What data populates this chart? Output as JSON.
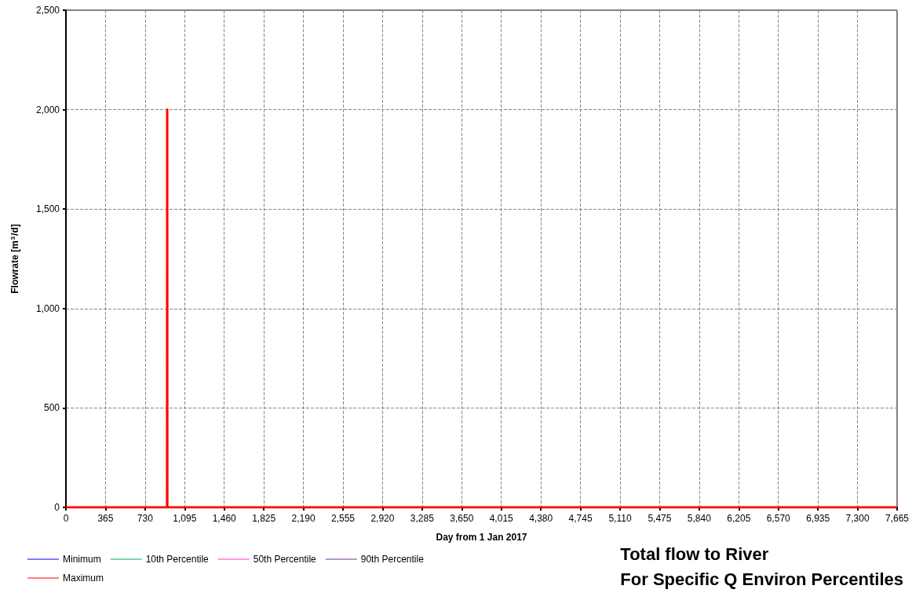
{
  "chart_data": {
    "type": "line",
    "title": "Total flow to River",
    "subtitle": "For Specific Q Environ Percentiles",
    "xlabel": "Day from 1 Jan 2017",
    "ylabel": "Flowrate [m$^{3}$/d]",
    "x": [
      0,
      933,
      934,
      935,
      7665
    ],
    "series": [
      {
        "name": "Minimum",
        "color": "#0000ff",
        "values": [
          null,
          null,
          null,
          null,
          null
        ]
      },
      {
        "name": "10th Percentile",
        "color": "#00b050",
        "values": [
          null,
          null,
          null,
          null,
          null
        ]
      },
      {
        "name": "50th Percentile",
        "color": "#ff33cc",
        "values": [
          null,
          null,
          null,
          null,
          null
        ]
      },
      {
        "name": "90th Percentile",
        "color": "#7030a0",
        "values": [
          null,
          null,
          null,
          null,
          null
        ]
      },
      {
        "name": "Maximum",
        "color": "#ff0000",
        "values": [
          0,
          0,
          2000,
          0,
          0
        ]
      }
    ],
    "xlim": [
      0,
      7665
    ],
    "xticks": [
      0,
      365,
      730,
      {
        "value": 1095,
        "label": "1,095"
      },
      {
        "value": 1460,
        "label": "1,460"
      },
      {
        "value": 1825,
        "label": "1,825"
      },
      {
        "value": 2190,
        "label": "2,190"
      },
      {
        "value": 2555,
        "label": "2,555"
      },
      {
        "value": 2920,
        "label": "2,920"
      },
      {
        "value": 3285,
        "label": "3,285"
      },
      {
        "value": 3650,
        "label": "3,650"
      },
      {
        "value": 4015,
        "label": "4,015"
      },
      {
        "value": 4380,
        "label": "4,380"
      },
      {
        "value": 4745,
        "label": "4,745"
      },
      {
        "value": 5110,
        "label": "5,110"
      },
      {
        "value": 5475,
        "label": "5,475"
      },
      {
        "value": 5840,
        "label": "5,840"
      },
      {
        "value": 6205,
        "label": "6,205"
      },
      {
        "value": 6570,
        "label": "6,570"
      },
      {
        "value": 6935,
        "label": "6,935"
      },
      {
        "value": 7300,
        "label": "7,300"
      },
      {
        "value": 7665,
        "label": "7,665"
      }
    ],
    "ylim": [
      0,
      2500
    ],
    "yticks": [
      0,
      500,
      {
        "value": 1000,
        "label": "1,000"
      },
      {
        "value": 1500,
        "label": "1,500"
      },
      {
        "value": 2000,
        "label": "2,000"
      },
      {
        "value": 2500,
        "label": "2,500"
      }
    ],
    "grid": true,
    "legend": "bottom left",
    "marker": "none",
    "line_style": "solid"
  }
}
